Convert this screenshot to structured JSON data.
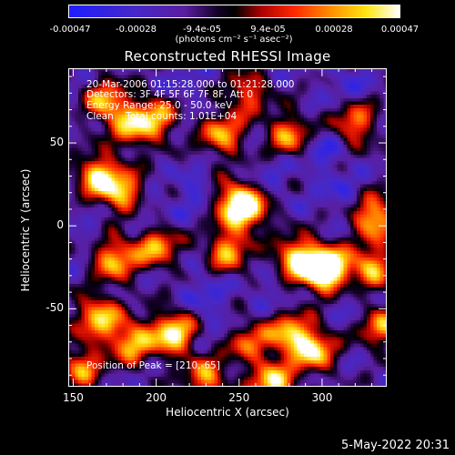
{
  "colorbar": {
    "labels": [
      "-0.00047",
      "-0.00028",
      "-9.4e-05",
      "9.4e-05",
      "0.00028",
      "0.00047"
    ],
    "units": "(photons cm⁻² s⁻¹ asec⁻²)",
    "colors": [
      "#0000ff",
      "#000000",
      "#ff0000",
      "#ffff00",
      "#ffffff"
    ]
  },
  "title": "Reconstructed RHESSI Image",
  "annotations": {
    "time_range": "20-Mar-2006 01:15:28.000 to 01:21:28.000",
    "detectors": "Detectors: 3F 4F 5F 6F 7F 8F, Att 0",
    "energy_range": "Energy Range: 25.0 - 50.0 keV",
    "algorithm": "Clean    Total counts: 1.01E+04",
    "peak": "Position of Peak = [210,-65]"
  },
  "timestamp": "5-May-2022 20:31",
  "chart_data": {
    "type": "heatmap",
    "title": "Reconstructed RHESSI Image",
    "xlabel": "Heliocentric X (arcsec)",
    "ylabel": "Heliocentric Y (arcsec)",
    "xlim": [
      147,
      339
    ],
    "ylim": [
      -97,
      95
    ],
    "x_ticks": [
      150,
      200,
      250,
      300
    ],
    "y_ticks": [
      -50,
      0,
      50
    ],
    "colorbar_range": [
      -0.00047,
      0.00047
    ],
    "peak_position": [
      210,
      -65
    ],
    "bright_features": [
      {
        "x": 165,
        "y": 30,
        "level": 0.85
      },
      {
        "x": 180,
        "y": 20,
        "level": 0.7
      },
      {
        "x": 170,
        "y": 75,
        "level": 0.65
      },
      {
        "x": 200,
        "y": 65,
        "level": 0.6
      },
      {
        "x": 185,
        "y": 60,
        "level": 0.55
      },
      {
        "x": 175,
        "y": -20,
        "level": 0.75
      },
      {
        "x": 200,
        "y": -12,
        "level": 0.7
      },
      {
        "x": 243,
        "y": -15,
        "level": 0.65
      },
      {
        "x": 285,
        "y": -20,
        "level": 0.95
      },
      {
        "x": 305,
        "y": -25,
        "level": 0.7
      },
      {
        "x": 300,
        "y": -28,
        "level": 0.6
      },
      {
        "x": 255,
        "y": 10,
        "level": 0.9
      },
      {
        "x": 245,
        "y": 15,
        "level": 0.55
      },
      {
        "x": 332,
        "y": 5,
        "level": 0.85
      },
      {
        "x": 330,
        "y": -25,
        "level": 0.7
      },
      {
        "x": 240,
        "y": 55,
        "level": 0.65
      },
      {
        "x": 280,
        "y": 55,
        "level": 0.6
      },
      {
        "x": 320,
        "y": 62,
        "level": 0.55
      },
      {
        "x": 255,
        "y": 80,
        "level": 0.45
      },
      {
        "x": 165,
        "y": -55,
        "level": 0.8
      },
      {
        "x": 210,
        "y": -65,
        "level": 1.0
      },
      {
        "x": 185,
        "y": -70,
        "level": 0.75
      },
      {
        "x": 255,
        "y": -70,
        "level": 0.45
      },
      {
        "x": 280,
        "y": -65,
        "level": 0.7
      },
      {
        "x": 295,
        "y": -75,
        "level": 0.85
      },
      {
        "x": 270,
        "y": -95,
        "level": 0.9
      },
      {
        "x": 230,
        "y": -92,
        "level": 0.6
      },
      {
        "x": 155,
        "y": -85,
        "level": 0.55
      },
      {
        "x": 335,
        "y": -60,
        "level": 0.6
      }
    ],
    "dark_features": [
      {
        "x": 225,
        "y": 20,
        "level": -0.7
      },
      {
        "x": 195,
        "y": 5,
        "level": -0.65
      },
      {
        "x": 300,
        "y": 45,
        "level": -0.7
      },
      {
        "x": 310,
        "y": 20,
        "level": -0.6
      },
      {
        "x": 230,
        "y": -40,
        "level": -0.65
      },
      {
        "x": 270,
        "y": -40,
        "level": -0.55
      },
      {
        "x": 320,
        "y": -45,
        "level": -0.6
      },
      {
        "x": 215,
        "y": 85,
        "level": -0.55
      },
      {
        "x": 160,
        "y": 0,
        "level": -0.5
      },
      {
        "x": 270,
        "y": 30,
        "level": -0.55
      },
      {
        "x": 240,
        "y": -60,
        "level": -0.5
      },
      {
        "x": 315,
        "y": 85,
        "level": -0.6
      }
    ]
  }
}
